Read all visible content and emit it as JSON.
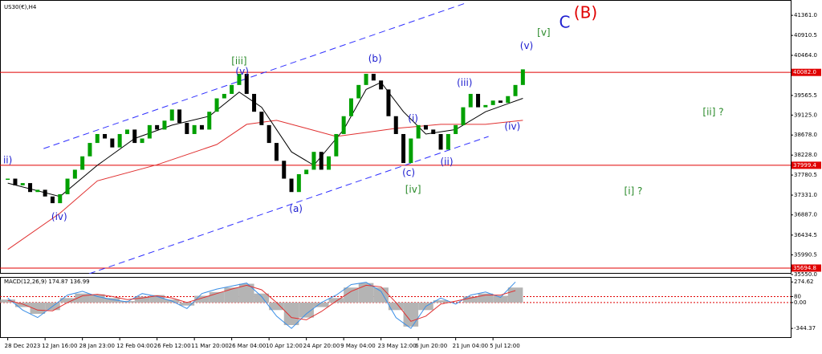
{
  "chart_data": [
    {
      "type": "candlestick",
      "title": "US30(€),H4",
      "categories": [
        "28 Dec 2023",
        null,
        null,
        null,
        null,
        "12 Jan 16:00",
        null,
        null,
        null,
        null,
        "28 Jan 23:00",
        null,
        null,
        null,
        null,
        "12 Feb 04:00",
        null,
        null,
        null,
        null,
        "26 Feb 12:00",
        null,
        null,
        null,
        null,
        "11 Mar 20:00",
        null,
        null,
        null,
        null,
        "26 Mar 04:00",
        null,
        null,
        null,
        null,
        "10 Apr 12:00",
        null,
        null,
        null,
        null,
        "24 Apr 20:00",
        null,
        null,
        null,
        null,
        "9 May 04:00",
        null,
        null,
        null,
        null,
        "23 May 12:00",
        null,
        null,
        null,
        null,
        "6 Jun 20:00",
        null,
        null,
        null,
        null,
        "21 Jun 04:00",
        null,
        null,
        null,
        null,
        "5 Jul 12:00",
        null,
        null,
        null,
        null
      ],
      "values": [
        37700,
        37550,
        37600,
        37400,
        37450,
        37300,
        37150,
        37350,
        37700,
        37900,
        38200,
        38500,
        38700,
        38600,
        38400,
        38700,
        38800,
        38500,
        38600,
        38900,
        38800,
        39000,
        39250,
        38950,
        38700,
        38900,
        38800,
        39200,
        39500,
        39600,
        39800,
        40050,
        39600,
        39200,
        38900,
        38500,
        38100,
        37700,
        37400,
        37800,
        37900,
        38300,
        37900,
        38200,
        38700,
        39100,
        39500,
        39800,
        40050,
        39900,
        39700,
        39100,
        38700,
        38050,
        38600,
        38900,
        38800,
        38700,
        38350,
        38700,
        38900,
        39300,
        39600,
        39300,
        39350,
        39450,
        39400,
        39550,
        39800,
        40150
      ],
      "up_color": "#00a000",
      "down_color": "#000000",
      "moving_averages": [
        {
          "color": "#e03030",
          "x": [
            0,
            7,
            12,
            20,
            28,
            32,
            36,
            40,
            44,
            48,
            52,
            58,
            64,
            69
          ],
          "values": [
            36111,
            36926,
            37650,
            38012,
            38465,
            38917,
            39008,
            38827,
            38646,
            38736,
            38827,
            38917,
            38917,
            39008
          ]
        },
        {
          "color": "#000000",
          "x": [
            0,
            7,
            12,
            17,
            22,
            27,
            31,
            34,
            38,
            41,
            45,
            48,
            50,
            53,
            56,
            60,
            64,
            69
          ],
          "values": [
            37600,
            37300,
            38000,
            38600,
            38900,
            39100,
            39641,
            39300,
            38300,
            38000,
            38800,
            39700,
            39858,
            39200,
            38700,
            38800,
            39200,
            39500
          ]
        }
      ],
      "trendlines": [
        {
          "color": "#3030ff",
          "x": [
            4.8,
            61.3
          ],
          "values": [
            38374,
            41633
          ]
        },
        {
          "color": "#3030ff",
          "x": [
            10.9,
            64.4
          ],
          "values": [
            35568,
            38646
          ]
        }
      ],
      "levels": [
        {
          "value": 40082.0,
          "label": "40082.0"
        },
        37999.4,
        35694.8
      ],
      "level_color": "#e00000",
      "annotations": [
        {
          "text": "ii)",
          "x": 0,
          "y": 38103,
          "color": "#2020d0"
        },
        {
          "text": "(iv)",
          "x": 6.9,
          "y": 36835,
          "color": "#2020d0"
        },
        {
          "text": "[iii]",
          "x": 31,
          "y": 40329,
          "color": "#2a8a2a"
        },
        {
          "text": "(v)",
          "x": 31.4,
          "y": 40094,
          "color": "#2020d0"
        },
        {
          "text": "(a)",
          "x": 38.6,
          "y": 37016,
          "color": "#2020d0"
        },
        {
          "text": "(b)",
          "x": 49.2,
          "y": 40383,
          "color": "#2020d0"
        },
        {
          "text": "(i)",
          "x": 54.3,
          "y": 39044,
          "color": "#2020d0"
        },
        {
          "text": "(c)",
          "x": 53.7,
          "y": 37831,
          "color": "#2020d0"
        },
        {
          "text": "[iv]",
          "x": 54.3,
          "y": 37451,
          "color": "#2a8a2a"
        },
        {
          "text": "(ii)",
          "x": 58.8,
          "y": 38066,
          "color": "#2020d0"
        },
        {
          "text": "(iii)",
          "x": 61.2,
          "y": 39840,
          "color": "#2020d0"
        },
        {
          "text": "(iv)",
          "x": 67.6,
          "y": 38863,
          "color": "#2020d0"
        },
        {
          "text": "(v)",
          "x": 69.5,
          "y": 40673,
          "color": "#2020d0"
        },
        {
          "text": "[v]",
          "x": 71.8,
          "y": 40963,
          "color": "#2a8a2a"
        },
        {
          "text": "C",
          "x": 74.6,
          "y": 41180,
          "color": "#2020d0",
          "emphasis": true
        },
        {
          "text": "(B)",
          "x": 77.4,
          "y": 41397,
          "color": "#e00000",
          "emphasis": true
        },
        {
          "text": "[ii] ?",
          "x": 94.5,
          "y": 39189,
          "color": "#2a8a2a"
        },
        {
          "text": "[i] ?",
          "x": 83.8,
          "y": 37415,
          "color": "#2a8a2a"
        }
      ],
      "ylim": [
        35568,
        41687
      ],
      "yticks": [
        {
          "value": 41361.0,
          "label": "41361.0"
        },
        {
          "value": 40910.5,
          "label": "40910.5"
        },
        {
          "value": 40464.0,
          "label": "40464.0"
        },
        {
          "value": 39565.5,
          "label": "39565.5"
        },
        {
          "value": 39125.0,
          "label": "39125.0"
        },
        {
          "value": 38678.0,
          "label": "38678.0"
        },
        {
          "value": 38228.0,
          "label": "38228.0"
        },
        {
          "value": 37780.5,
          "label": "37780.5"
        },
        {
          "value": 37331.0,
          "label": "37331.0"
        },
        {
          "value": 36887.0,
          "label": "36887.0"
        },
        {
          "value": 36434.5,
          "label": "36434.5"
        },
        {
          "value": 35990.5,
          "label": "35990.5"
        },
        {
          "value": 35550.0,
          "label": "35550.0"
        }
      ]
    },
    {
      "type": "macd",
      "title": "MACD(12,26,9) 174.87 136.99",
      "x": [
        0,
        2,
        4,
        6,
        8,
        10,
        12,
        14,
        16,
        18,
        20,
        22,
        24,
        26,
        28,
        30,
        32,
        34,
        36,
        38,
        40,
        42,
        44,
        46,
        48,
        50,
        52,
        54,
        56,
        58,
        60,
        62,
        64,
        66,
        68
      ],
      "histogram": [
        40,
        -60,
        -150,
        -100,
        60,
        120,
        110,
        60,
        20,
        80,
        100,
        40,
        -40,
        90,
        140,
        200,
        250,
        120,
        -100,
        -300,
        -200,
        -60,
        60,
        200,
        260,
        200,
        -100,
        -320,
        -100,
        30,
        0,
        80,
        120,
        90,
        200
      ],
      "signal": [
        30,
        -20,
        -100,
        -110,
        0,
        90,
        110,
        80,
        40,
        60,
        90,
        60,
        0,
        60,
        120,
        180,
        230,
        170,
        0,
        -200,
        -230,
        -120,
        20,
        150,
        230,
        210,
        0,
        -250,
        -180,
        -20,
        20,
        60,
        100,
        100,
        160
      ],
      "macd": [
        60,
        -100,
        -200,
        -50,
        100,
        150,
        80,
        40,
        10,
        120,
        80,
        20,
        -80,
        120,
        180,
        220,
        260,
        80,
        -180,
        -344,
        -150,
        0,
        100,
        240,
        270,
        150,
        -200,
        -344,
        -50,
        60,
        -20,
        100,
        140,
        70,
        274
      ],
      "hist_color": "#b4b4b4",
      "signal_color": "#e03030",
      "macd_color": "#3a8ee6",
      "level_color": "#e00000",
      "levels": [
        80,
        0
      ],
      "ylim": [
        -450,
        320
      ],
      "yticks": [
        274.62,
        80,
        {
          "value": 0,
          "label": "0.00"
        },
        -344.37
      ]
    }
  ]
}
